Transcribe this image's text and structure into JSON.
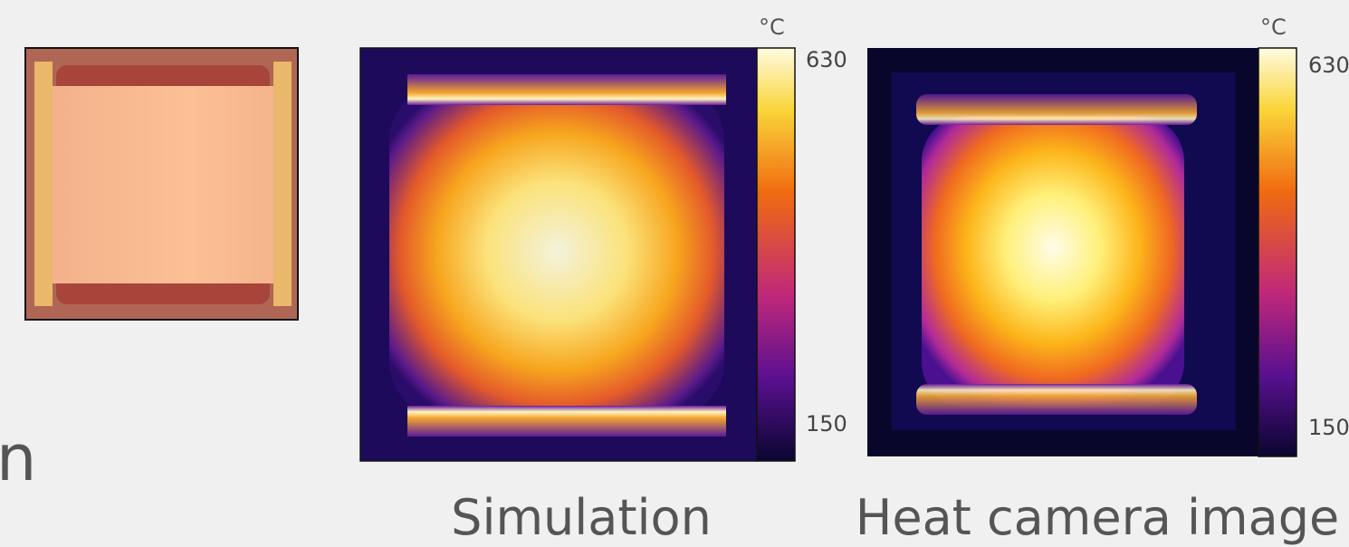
{
  "left_fragment": "n",
  "panels": [
    {
      "caption": "Simulation",
      "colorbar": {
        "unit": "°C",
        "max": 630,
        "min": 150
      }
    },
    {
      "caption": "Heat camera image",
      "colorbar": {
        "unit": "°C",
        "max": 630,
        "min": 150
      }
    }
  ]
}
